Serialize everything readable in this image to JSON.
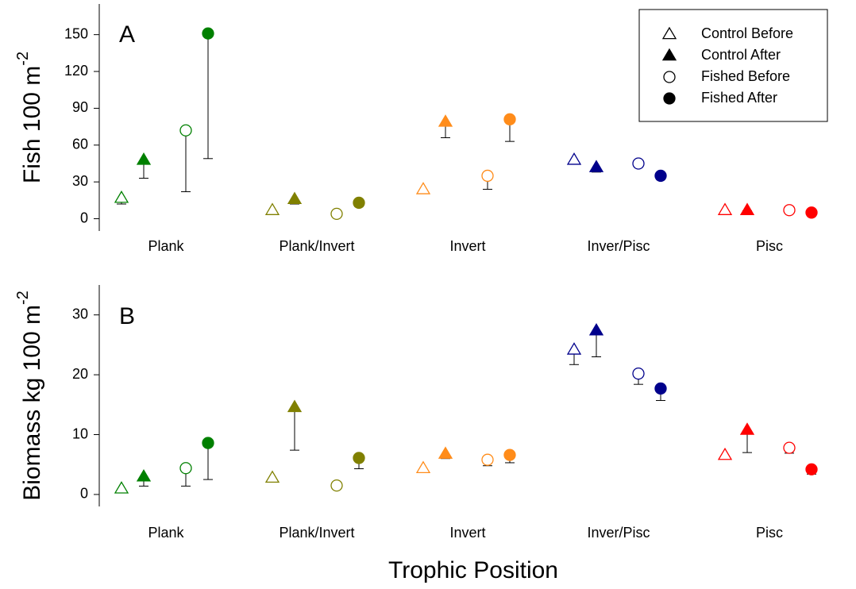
{
  "chart_data": [
    {
      "type": "scatter",
      "panel_label": "A",
      "y_label": "Fish 100 m",
      "y_label_exponent": "-2",
      "categories": [
        "Plank",
        "Plank/Invert",
        "Invert",
        "Inver/Pisc",
        "Pisc"
      ],
      "category_colors": [
        "#008000",
        "#808000",
        "#ff8c1a",
        "#00008b",
        "#ff0000"
      ],
      "ylim": [
        -10,
        175
      ],
      "yticks": [
        0,
        30,
        60,
        90,
        120,
        150
      ],
      "legend": "upper right",
      "series": [
        {
          "name": "Control Before",
          "marker": "triangle",
          "filled": false,
          "values": [
            17,
            7,
            24,
            48,
            7
          ],
          "errors": [
            5,
            2,
            3,
            3,
            1
          ]
        },
        {
          "name": "Control After",
          "marker": "triangle",
          "filled": true,
          "values": [
            48,
            16,
            79,
            42,
            7
          ],
          "errors": [
            15,
            4,
            13,
            4,
            0.5
          ]
        },
        {
          "name": "Fished Before",
          "marker": "circle",
          "filled": false,
          "values": [
            72,
            4,
            35,
            45,
            7
          ],
          "errors": [
            50,
            1,
            11,
            3,
            1
          ]
        },
        {
          "name": "Fished After",
          "marker": "circle",
          "filled": true,
          "values": [
            151,
            13,
            81,
            35,
            5
          ],
          "errors": [
            102,
            3,
            18,
            3,
            0.5
          ]
        }
      ]
    },
    {
      "type": "scatter",
      "panel_label": "B",
      "y_label": "Biomass kg 100 m",
      "y_label_exponent": "-2",
      "x_label": "Trophic Position",
      "categories": [
        "Plank",
        "Plank/Invert",
        "Invert",
        "Inver/Pisc",
        "Pisc"
      ],
      "category_colors": [
        "#008000",
        "#808000",
        "#ff8c1a",
        "#00008b",
        "#ff0000"
      ],
      "ylim": [
        -2,
        35
      ],
      "yticks": [
        0,
        10,
        20,
        30
      ],
      "series": [
        {
          "marker": "triangle",
          "filled": false,
          "values": [
            1,
            2.8,
            4.4,
            24.2,
            6.6
          ],
          "errors": [
            0.3,
            0.3,
            0.4,
            2.5,
            0.3
          ]
        },
        {
          "marker": "triangle",
          "filled": true,
          "values": [
            3,
            14.6,
            6.8,
            27.4,
            10.8
          ],
          "errors": [
            1.6,
            7.2,
            0.8,
            4.4,
            3.8
          ]
        },
        {
          "marker": "circle",
          "filled": false,
          "values": [
            4.4,
            1.5,
            5.8,
            20.2,
            7.8
          ],
          "errors": [
            3.0,
            0.5,
            1.0,
            1.8,
            0.9
          ]
        },
        {
          "marker": "circle",
          "filled": true,
          "values": [
            8.6,
            6.1,
            6.6,
            17.7,
            4.2
          ],
          "errors": [
            6.1,
            1.8,
            1.3,
            2.0,
            0.8
          ]
        }
      ]
    }
  ]
}
